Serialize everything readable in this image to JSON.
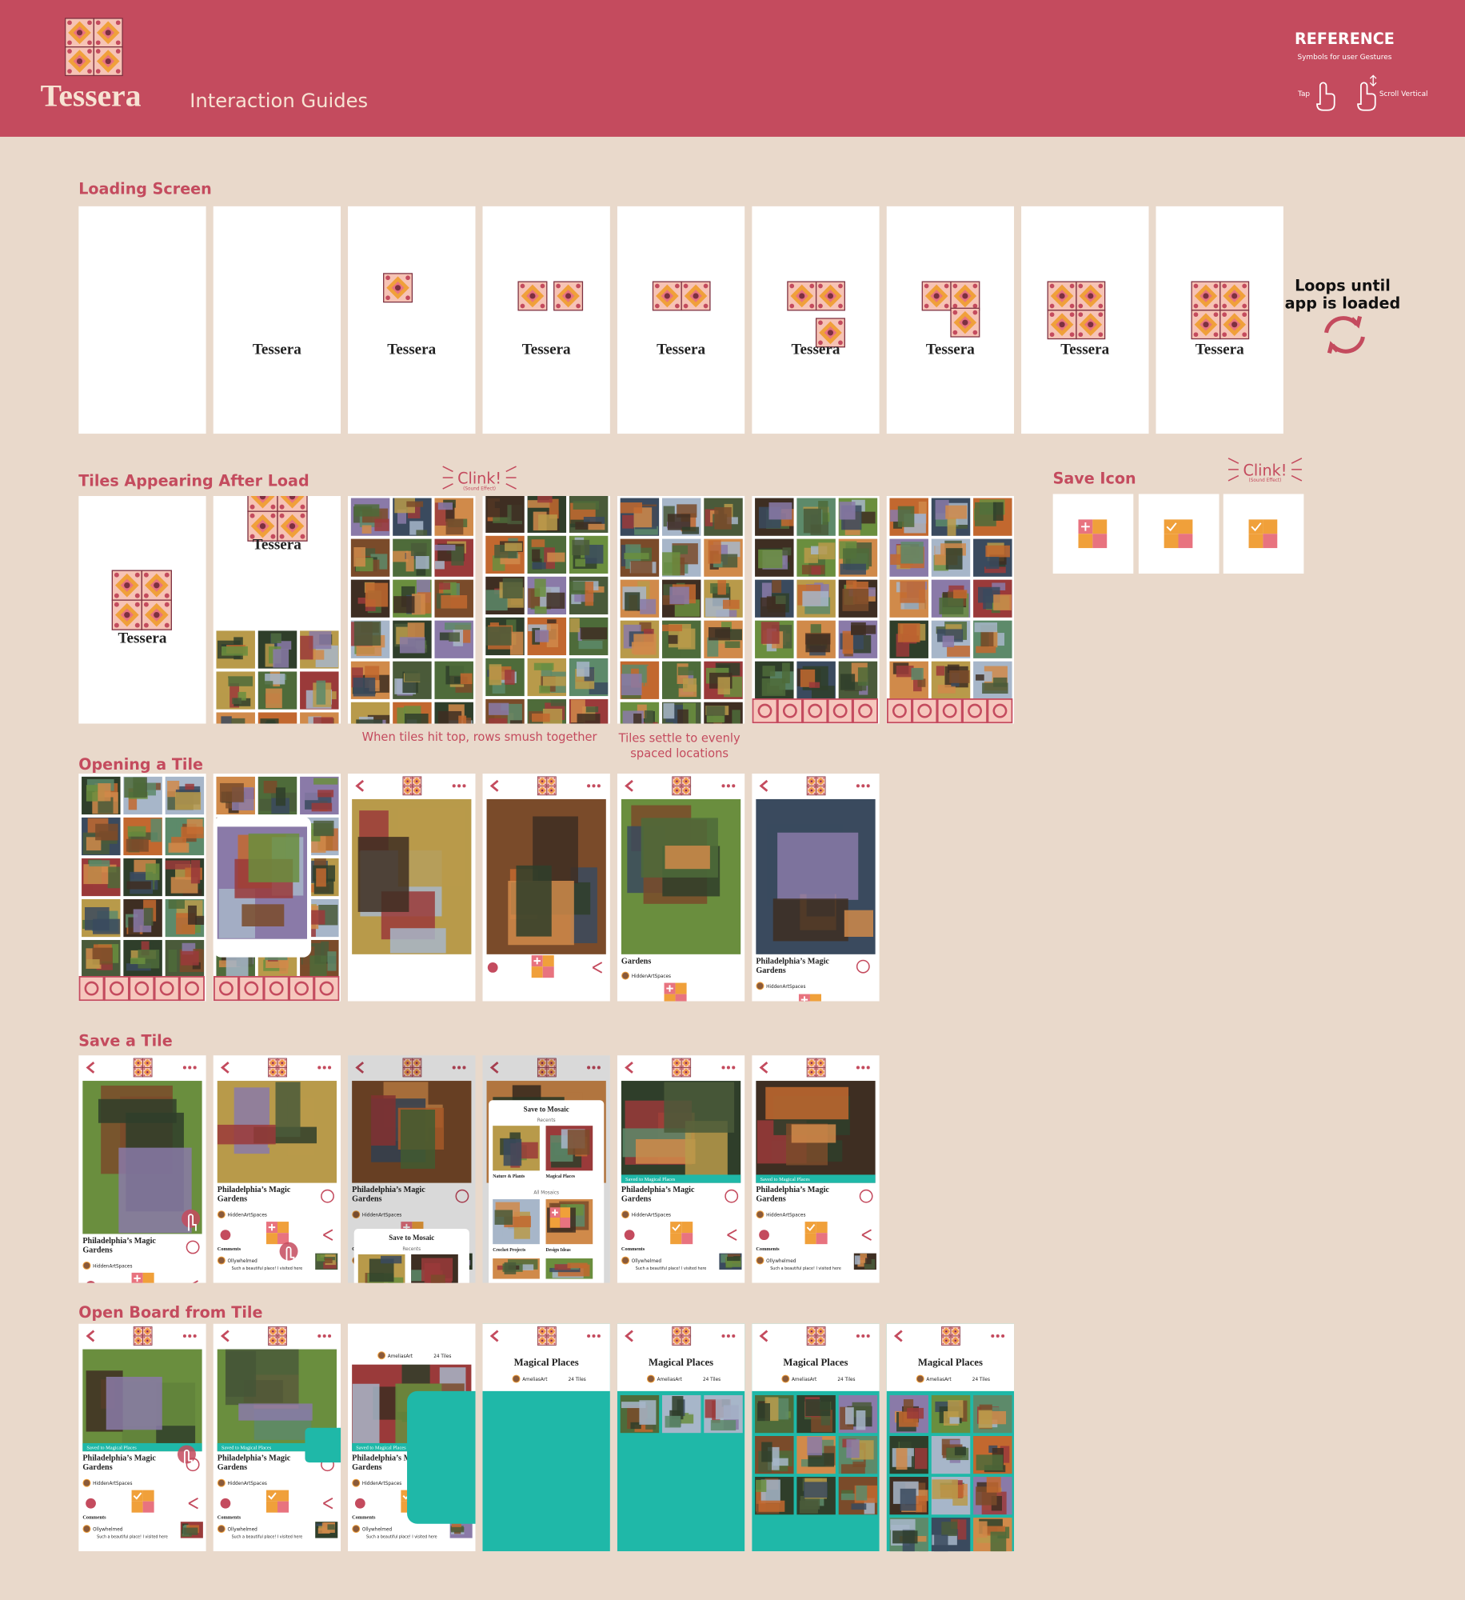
{
  "header": {
    "brand": "Tessera",
    "title": "Interaction Guides",
    "reference_title": "REFERENCE",
    "reference_subtitle": "Symbols for user Gestures",
    "tap": "Tap",
    "scroll": "Scroll Vertical"
  },
  "loading": {
    "title": "Loading Screen",
    "wordmark": "Tessera",
    "note_line1": "Loops until",
    "note_line2": "app is loaded"
  },
  "tiles_appearing": {
    "title": "Tiles Appearing After Load",
    "sound": "Clink!",
    "sound_note": "(Sound Effect)",
    "caption_1": "When tiles hit top, rows smush together",
    "caption_2_line1": "Tiles settle to evenly",
    "caption_2_line2": "spaced locations"
  },
  "save_icon": {
    "title": "Save Icon"
  },
  "opening": {
    "title": "Opening a Tile"
  },
  "save_tile": {
    "title": "Save a Tile"
  },
  "open_board": {
    "title": "Open Board from Tile"
  },
  "post": {
    "title_line1": "Philadelphia’s Magic",
    "title_line2": "Gardens",
    "author": "HiddenArtSpaces",
    "comments": "Comments",
    "commenter": "Ollywhelmed",
    "comment": "Such a beautiful place! I visited here"
  },
  "save_sheet": {
    "title": "Save to Mosaic",
    "recents": "Recents",
    "all": "All Mosaics",
    "boards": [
      "Nature & Plants",
      "Magical Places",
      "Crochet Projects",
      "Design Ideas"
    ]
  },
  "board": {
    "name": "Magical Places",
    "owner": "AmeliasArt",
    "count": "24 Tiles",
    "toast": "Saved to Magical Places"
  }
}
